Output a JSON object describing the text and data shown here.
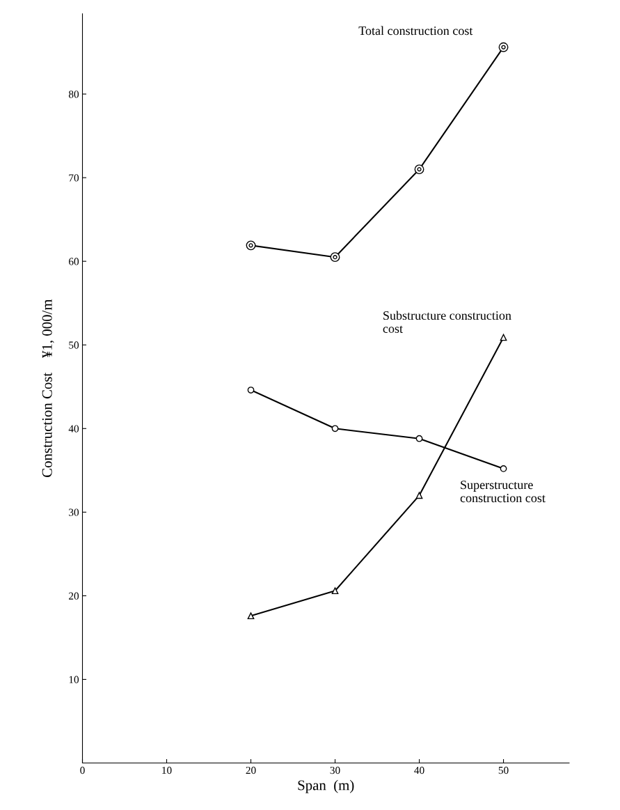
{
  "chart_data": {
    "type": "line",
    "xlabel": "Span  (m)",
    "ylabel": "Construction Cost    ¥1, 000/m",
    "xlim": [
      0,
      57.8
    ],
    "ylim": [
      0,
      89.6
    ],
    "xticks": [
      0,
      10,
      20,
      30,
      40,
      50
    ],
    "yticks": [
      10,
      20,
      30,
      40,
      50,
      60,
      70,
      80
    ],
    "grid": false,
    "legend": false,
    "line_style": "solid",
    "series": [
      {
        "name": "Total construction cost",
        "color": "#000000",
        "marker": "circle",
        "x": [
          20,
          30,
          40,
          50
        ],
        "values": [
          61.9,
          60.5,
          71.0,
          85.6
        ]
      },
      {
        "name": "Substructure construction\ncost",
        "color": "#000000",
        "marker": "triangle",
        "x": [
          20,
          30,
          40,
          50
        ],
        "values": [
          17.6,
          20.6,
          32.0,
          50.9
        ]
      },
      {
        "name": "Superstructure\nconstruction cost",
        "color": "#000000",
        "marker": "circle",
        "x": [
          20,
          30,
          40,
          50
        ],
        "values": [
          44.6,
          40.0,
          38.8,
          35.2
        ]
      }
    ]
  }
}
